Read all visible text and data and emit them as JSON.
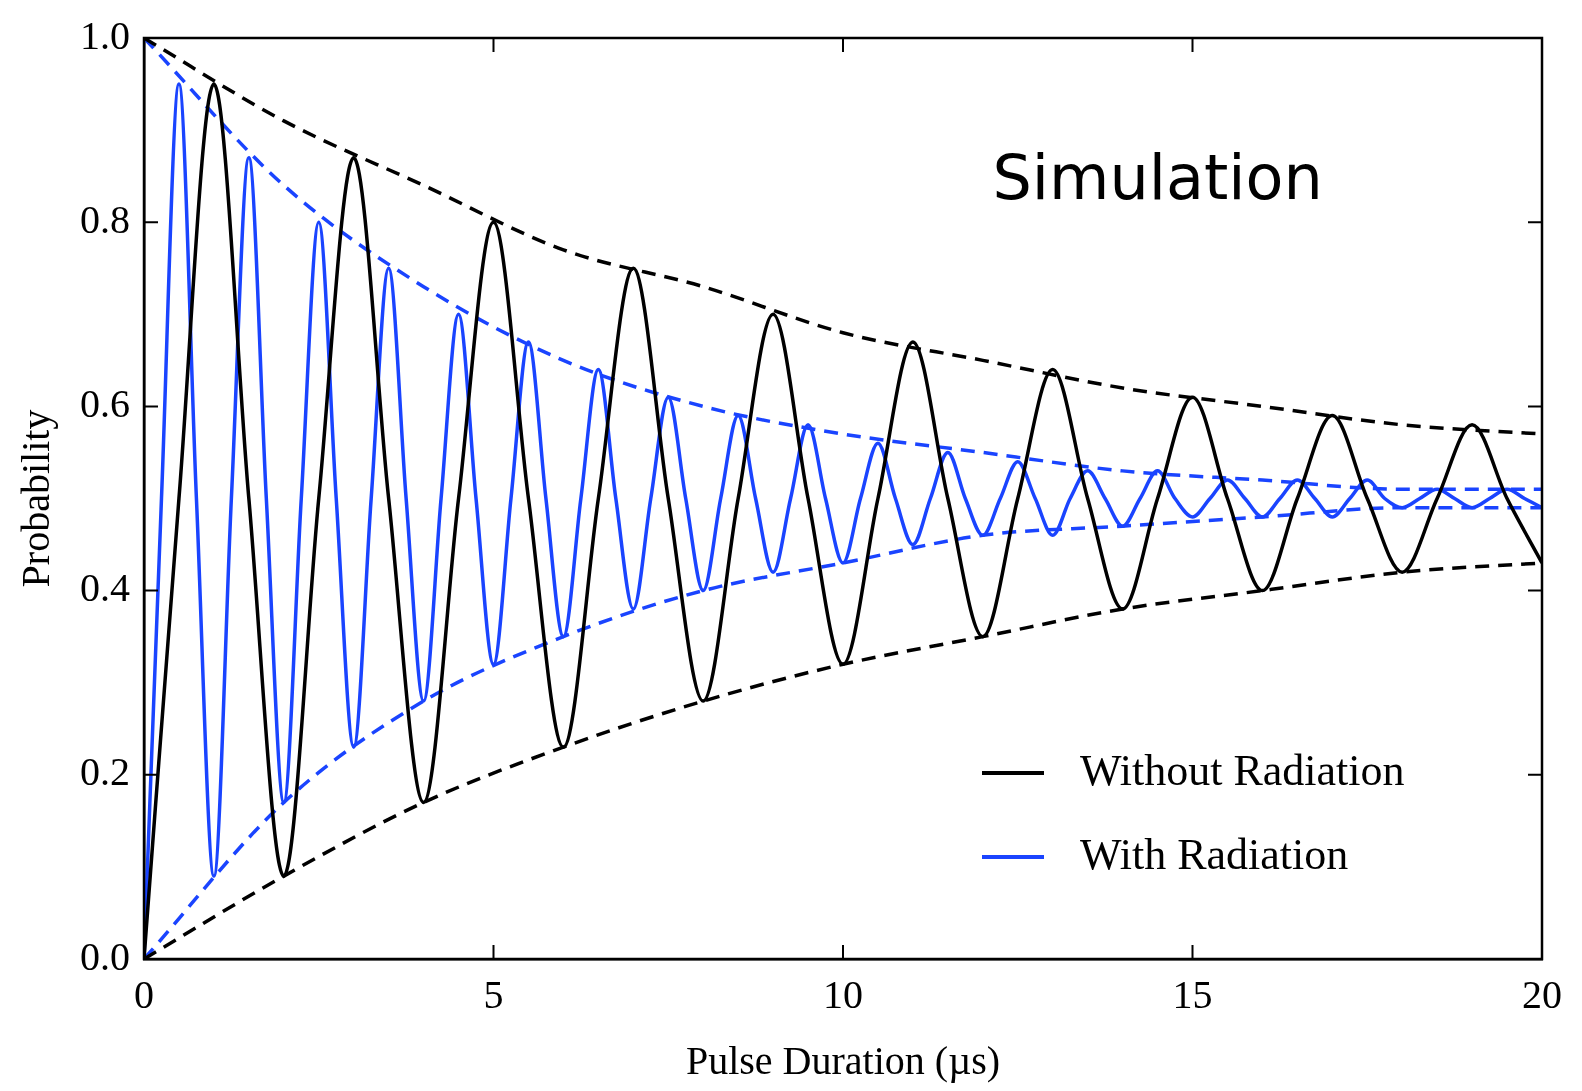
{
  "chart_data": {
    "type": "line",
    "xlabel": "Pulse Duration (µs)",
    "ylabel": "Probability",
    "annotations": [
      "Simulation"
    ],
    "xlim": [
      0,
      20
    ],
    "ylim": [
      0,
      1
    ],
    "xticks": [
      0,
      5,
      10,
      15,
      20
    ],
    "yticks": [
      {
        "value": 0,
        "label": "0.0"
      },
      {
        "value": 0.2,
        "label": "0.2"
      },
      {
        "value": 0.4,
        "label": "0.4"
      },
      {
        "value": 0.6,
        "label": "0.6"
      },
      {
        "value": 0.8,
        "label": "0.8"
      },
      {
        "value": 1,
        "label": "1.0"
      }
    ],
    "grid": false,
    "legend": "bottom right",
    "marker": "none",
    "series": [
      {
        "name": "Without Radiation",
        "color": "#000000",
        "line_style": "solid",
        "x": [
          0,
          0.5,
          1,
          1.5,
          2,
          2.5,
          3,
          3.5,
          4,
          4.5,
          5,
          5.5,
          6,
          6.5,
          7,
          7.5,
          8,
          8.5,
          9,
          9.5,
          10,
          10.5,
          11,
          11.5,
          12,
          12.5,
          13,
          13.5,
          14,
          14.5,
          15,
          15.5,
          16,
          16.5,
          17,
          17.5,
          18,
          18.5,
          19,
          19.5,
          20
        ],
        "values": [
          0,
          0.5,
          0.95,
          0.5,
          0.09,
          0.5,
          0.87,
          0.5,
          0.17,
          0.5,
          0.8,
          0.5,
          0.23,
          0.5,
          0.75,
          0.5,
          0.28,
          0.5,
          0.7,
          0.5,
          0.32,
          0.5,
          0.67,
          0.5,
          0.35,
          0.5,
          0.64,
          0.5,
          0.38,
          0.5,
          0.61,
          0.5,
          0.4,
          0.5,
          0.59,
          0.5,
          0.42,
          0.5,
          0.58,
          0.5,
          0.43
        ]
      },
      {
        "name": "With Radiation",
        "color": "#1a44ff",
        "line_style": "solid",
        "x": [
          0,
          0.25,
          0.5,
          0.75,
          1,
          1.25,
          1.5,
          1.75,
          2,
          2.25,
          2.5,
          2.75,
          3,
          3.25,
          3.5,
          3.75,
          4,
          4.25,
          4.5,
          4.75,
          5,
          5.25,
          5.5,
          5.75,
          6,
          6.25,
          6.5,
          6.75,
          7,
          7.25,
          7.5,
          7.75,
          8,
          8.25,
          8.5,
          8.75,
          9,
          9.25,
          9.5,
          9.75,
          10,
          10.25,
          10.5,
          10.75,
          11,
          11.25,
          11.5,
          11.75,
          12,
          12.25,
          12.5,
          12.75,
          13,
          13.25,
          13.5,
          13.75,
          14,
          14.25,
          14.5,
          14.75,
          15,
          15.25,
          15.5,
          15.75,
          16,
          16.25,
          16.5,
          16.75,
          17,
          17.25,
          17.5,
          17.75,
          18,
          18.25,
          18.5,
          18.75,
          19,
          19.25,
          19.5,
          19.75,
          20
        ],
        "values": [
          0,
          0.5,
          0.95,
          0.5,
          0.09,
          0.5,
          0.87,
          0.5,
          0.17,
          0.5,
          0.8,
          0.5,
          0.23,
          0.5,
          0.75,
          0.5,
          0.28,
          0.5,
          0.7,
          0.5,
          0.32,
          0.5,
          0.67,
          0.5,
          0.35,
          0.5,
          0.64,
          0.5,
          0.38,
          0.5,
          0.61,
          0.5,
          0.4,
          0.5,
          0.59,
          0.5,
          0.42,
          0.5,
          0.58,
          0.5,
          0.43,
          0.5,
          0.56,
          0.5,
          0.45,
          0.5,
          0.55,
          0.5,
          0.46,
          0.5,
          0.54,
          0.5,
          0.46,
          0.5,
          0.53,
          0.5,
          0.47,
          0.5,
          0.53,
          0.5,
          0.48,
          0.5,
          0.52,
          0.5,
          0.48,
          0.5,
          0.52,
          0.5,
          0.48,
          0.5,
          0.52,
          0.5,
          0.49,
          0.5,
          0.51,
          0.5,
          0.49,
          0.5,
          0.51,
          0.5,
          0.49
        ]
      },
      {
        "color": "#000000",
        "line_style": "dashed",
        "x": [
          0,
          2,
          4,
          6,
          8,
          10,
          12,
          14,
          16,
          18,
          20
        ],
        "values": [
          1,
          0.91,
          0.84,
          0.77,
          0.73,
          0.68,
          0.65,
          0.62,
          0.6,
          0.58,
          0.57
        ]
      },
      {
        "color": "#000000",
        "line_style": "dashed",
        "x": [
          0,
          2,
          4,
          6,
          8,
          10,
          12,
          14,
          16,
          18,
          20
        ],
        "values": [
          0,
          0.09,
          0.17,
          0.23,
          0.28,
          0.32,
          0.35,
          0.38,
          0.4,
          0.42,
          0.43
        ]
      },
      {
        "color": "#1a44ff",
        "line_style": "dashed",
        "x": [
          0,
          2,
          4,
          6,
          8,
          10,
          12,
          14,
          16,
          18,
          20
        ],
        "values": [
          1,
          0.84,
          0.73,
          0.65,
          0.6,
          0.57,
          0.55,
          0.53,
          0.52,
          0.51,
          0.51
        ]
      },
      {
        "color": "#1a44ff",
        "line_style": "dashed",
        "x": [
          0,
          2,
          4,
          6,
          8,
          10,
          12,
          14,
          16,
          18,
          20
        ],
        "values": [
          0,
          0.17,
          0.28,
          0.35,
          0.4,
          0.43,
          0.46,
          0.47,
          0.48,
          0.49,
          0.49
        ]
      }
    ]
  }
}
